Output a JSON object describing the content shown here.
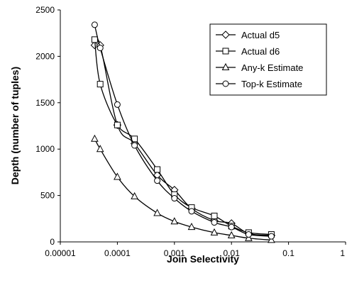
{
  "chart_data": {
    "type": "line",
    "x_scale": "log",
    "xlabel": "Join Selectivity",
    "ylabel": "Depth (number of tuples)",
    "xlim": [
      1e-05,
      1
    ],
    "ylim": [
      0,
      2500
    ],
    "x_tick_labels": [
      "0.00001",
      "0.0001",
      "0.001",
      "0.01",
      "0.1",
      "1"
    ],
    "x_tick_values": [
      1e-05,
      0.0001,
      0.001,
      0.01,
      0.1,
      1
    ],
    "y_tick_labels": [
      "0",
      "500",
      "1000",
      "1500",
      "2000",
      "2500"
    ],
    "y_tick_values": [
      0,
      500,
      1000,
      1500,
      2000,
      2500
    ],
    "grid": false,
    "legend_position": "top-right",
    "series": [
      {
        "name": "Actual d5",
        "marker": "diamond",
        "x": [
          4e-05,
          5e-05,
          0.0001,
          0.0002,
          0.0005,
          0.001,
          0.002,
          0.005,
          0.01,
          0.02,
          0.05
        ],
        "y": [
          2120,
          2120,
          1260,
          1060,
          720,
          560,
          360,
          230,
          200,
          90,
          70
        ]
      },
      {
        "name": "Actual d6",
        "marker": "square",
        "x": [
          4e-05,
          5e-05,
          0.0001,
          0.0002,
          0.0005,
          0.001,
          0.002,
          0.005,
          0.01,
          0.02,
          0.05
        ],
        "y": [
          2180,
          1700,
          1260,
          1110,
          780,
          510,
          370,
          280,
          170,
          100,
          80
        ]
      },
      {
        "name": "Any-k Estimate",
        "marker": "triangle",
        "x": [
          4e-05,
          5e-05,
          0.0001,
          0.0002,
          0.0005,
          0.001,
          0.002,
          0.005,
          0.01,
          0.02,
          0.05
        ],
        "y": [
          1110,
          1000,
          700,
          490,
          310,
          220,
          160,
          100,
          70,
          40,
          20
        ]
      },
      {
        "name": "Top-k Estimate",
        "marker": "circle",
        "x": [
          4e-05,
          5e-05,
          0.0001,
          0.0002,
          0.0005,
          0.001,
          0.002,
          0.005,
          0.01,
          0.02,
          0.05
        ],
        "y": [
          2340,
          2090,
          1480,
          1040,
          660,
          470,
          330,
          210,
          160,
          80,
          60
        ]
      }
    ]
  }
}
